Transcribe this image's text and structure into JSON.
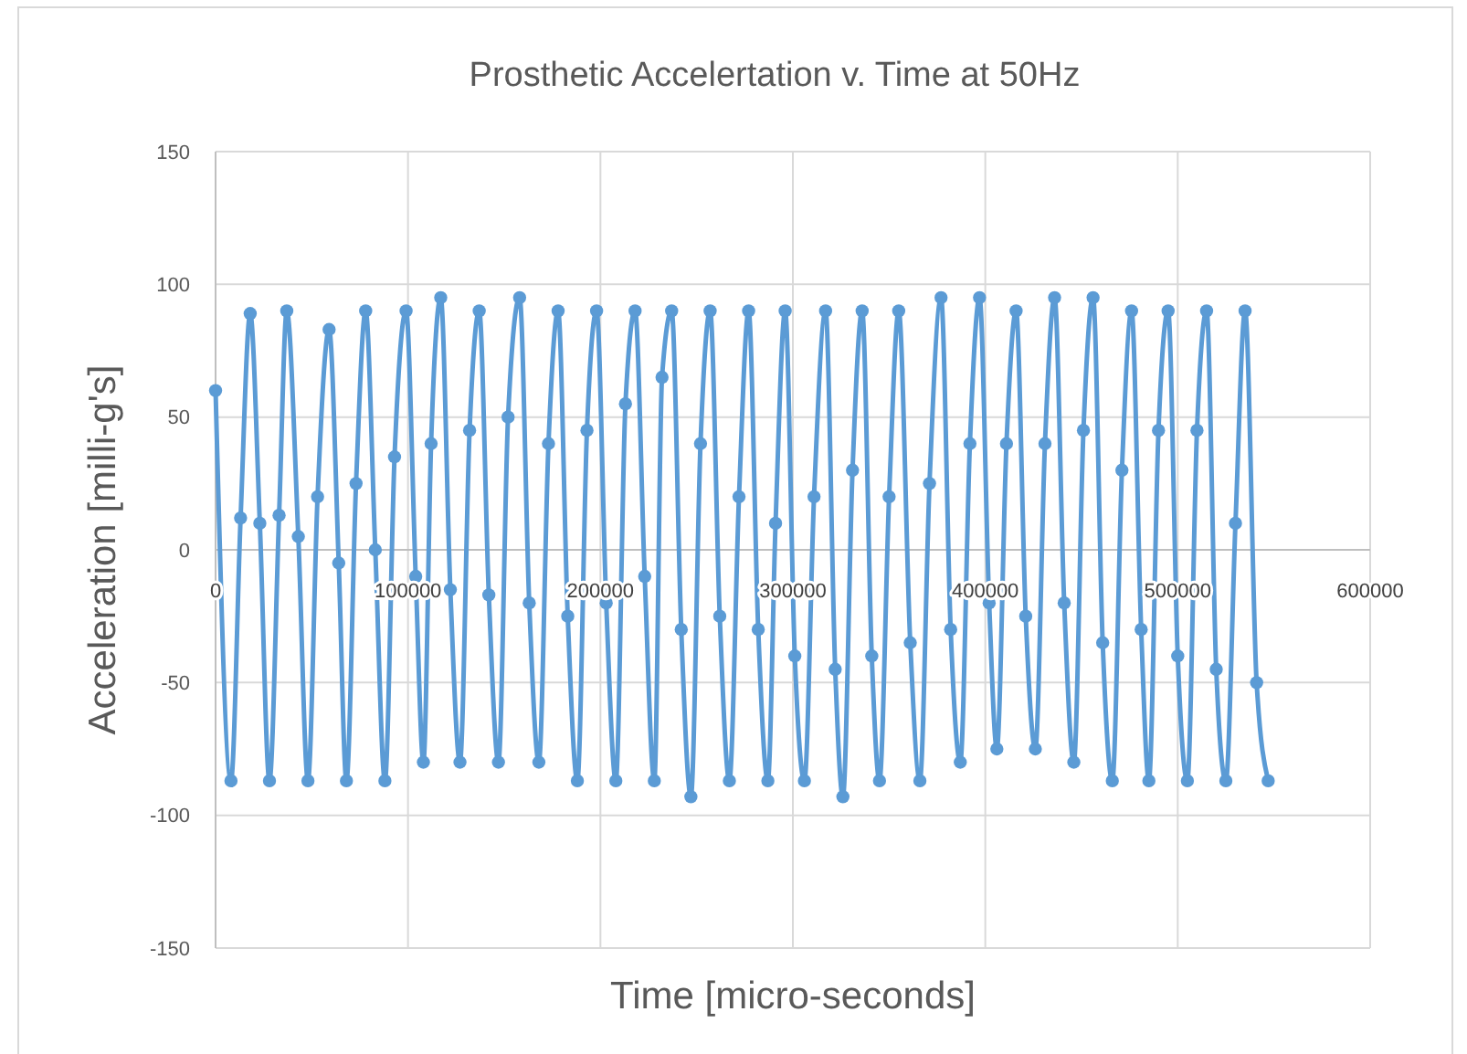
{
  "chart_data": {
    "type": "line",
    "title": "Prosthetic Accelertation v. Time at 50Hz",
    "xlabel": "Time [micro-seconds]",
    "ylabel": "Acceleration [milli-g's]",
    "xlim": [
      0,
      600000
    ],
    "xticks": [
      0,
      100000,
      200000,
      300000,
      400000,
      500000,
      600000
    ],
    "ylim": [
      -150,
      150
    ],
    "yticks": [
      -150,
      -100,
      -50,
      0,
      50,
      100,
      150
    ],
    "grid": true,
    "marker": "circle",
    "line_style": "solid",
    "series": [
      {
        "color": "#5b9bd5",
        "x": [
          0,
          8000,
          13000,
          18000,
          23000,
          28000,
          33000,
          37000,
          43000,
          48000,
          53000,
          59000,
          64000,
          68000,
          73000,
          78000,
          83000,
          88000,
          93000,
          99000,
          104000,
          108000,
          112000,
          117000,
          122000,
          127000,
          132000,
          137000,
          142000,
          147000,
          152000,
          158000,
          163000,
          168000,
          173000,
          178000,
          183000,
          188000,
          193000,
          198000,
          203000,
          208000,
          213000,
          218000,
          223000,
          228000,
          232000,
          237000,
          242000,
          247000,
          252000,
          257000,
          262000,
          267000,
          272000,
          277000,
          282000,
          287000,
          291000,
          296000,
          301000,
          306000,
          311000,
          317000,
          322000,
          326000,
          331000,
          336000,
          341000,
          345000,
          350000,
          355000,
          361000,
          366000,
          371000,
          377000,
          382000,
          387000,
          392000,
          397000,
          402000,
          406000,
          411000,
          416000,
          421000,
          426000,
          431000,
          436000,
          441000,
          446000,
          451000,
          456000,
          461000,
          466000,
          471000,
          476000,
          481000,
          485000,
          490000,
          495000,
          500000,
          505000,
          510000,
          515000,
          520000,
          525000,
          530000,
          535000,
          541000,
          547000
        ],
        "values": [
          60,
          -87,
          12,
          89,
          10,
          -87,
          13,
          90,
          5,
          -87,
          20,
          83,
          -5,
          -87,
          25,
          90,
          0,
          -87,
          35,
          90,
          -10,
          -80,
          40,
          95,
          -15,
          -80,
          45,
          90,
          -17,
          -80,
          50,
          95,
          -20,
          -80,
          40,
          90,
          -25,
          -87,
          45,
          90,
          -20,
          -87,
          55,
          90,
          -10,
          -87,
          65,
          90,
          -30,
          -93,
          40,
          90,
          -25,
          -87,
          20,
          90,
          -30,
          -87,
          10,
          90,
          -40,
          -87,
          20,
          90,
          -45,
          -93,
          30,
          90,
          -40,
          -87,
          20,
          90,
          -35,
          -87,
          25,
          95,
          -30,
          -80,
          40,
          95,
          -20,
          -75,
          40,
          90,
          -25,
          -75,
          40,
          95,
          -20,
          -80,
          45,
          95,
          -35,
          -87,
          30,
          90,
          -30,
          -87,
          45,
          90,
          -40,
          -87,
          45,
          90,
          -45,
          -87,
          10,
          90,
          -50,
          -87
        ]
      }
    ]
  }
}
